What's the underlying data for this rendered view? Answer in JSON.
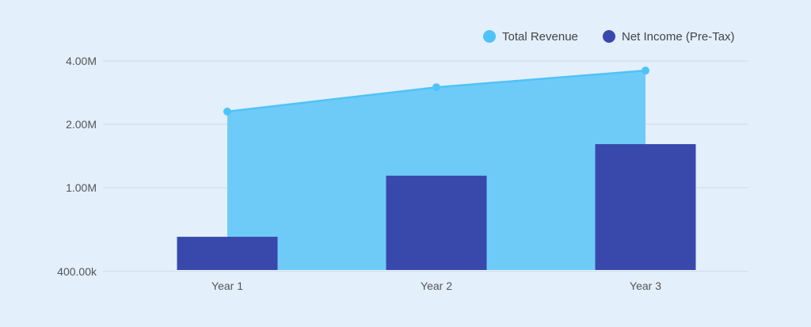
{
  "chart_data": {
    "type": "bar+area",
    "categories": [
      "Year 1",
      "Year 2",
      "Year 3"
    ],
    "series": [
      {
        "name": "Total Revenue",
        "kind": "area",
        "color": "#4fc3f7",
        "values": [
          2300000,
          3000000,
          3600000
        ]
      },
      {
        "name": "Net Income (Pre-Tax)",
        "kind": "bar",
        "color": "#3949ab",
        "values": [
          584000,
          1140000,
          1610000
        ]
      }
    ],
    "yscale": "log",
    "yticks": [
      {
        "value": 400000,
        "label": "400.00k"
      },
      {
        "value": 1000000,
        "label": "1.00M"
      },
      {
        "value": 2000000,
        "label": "2.00M"
      },
      {
        "value": 4000000,
        "label": "4.00M"
      }
    ],
    "ylim": [
      400000,
      4000000
    ],
    "grid": true,
    "legend": "top-right",
    "background": "#e3effb"
  }
}
